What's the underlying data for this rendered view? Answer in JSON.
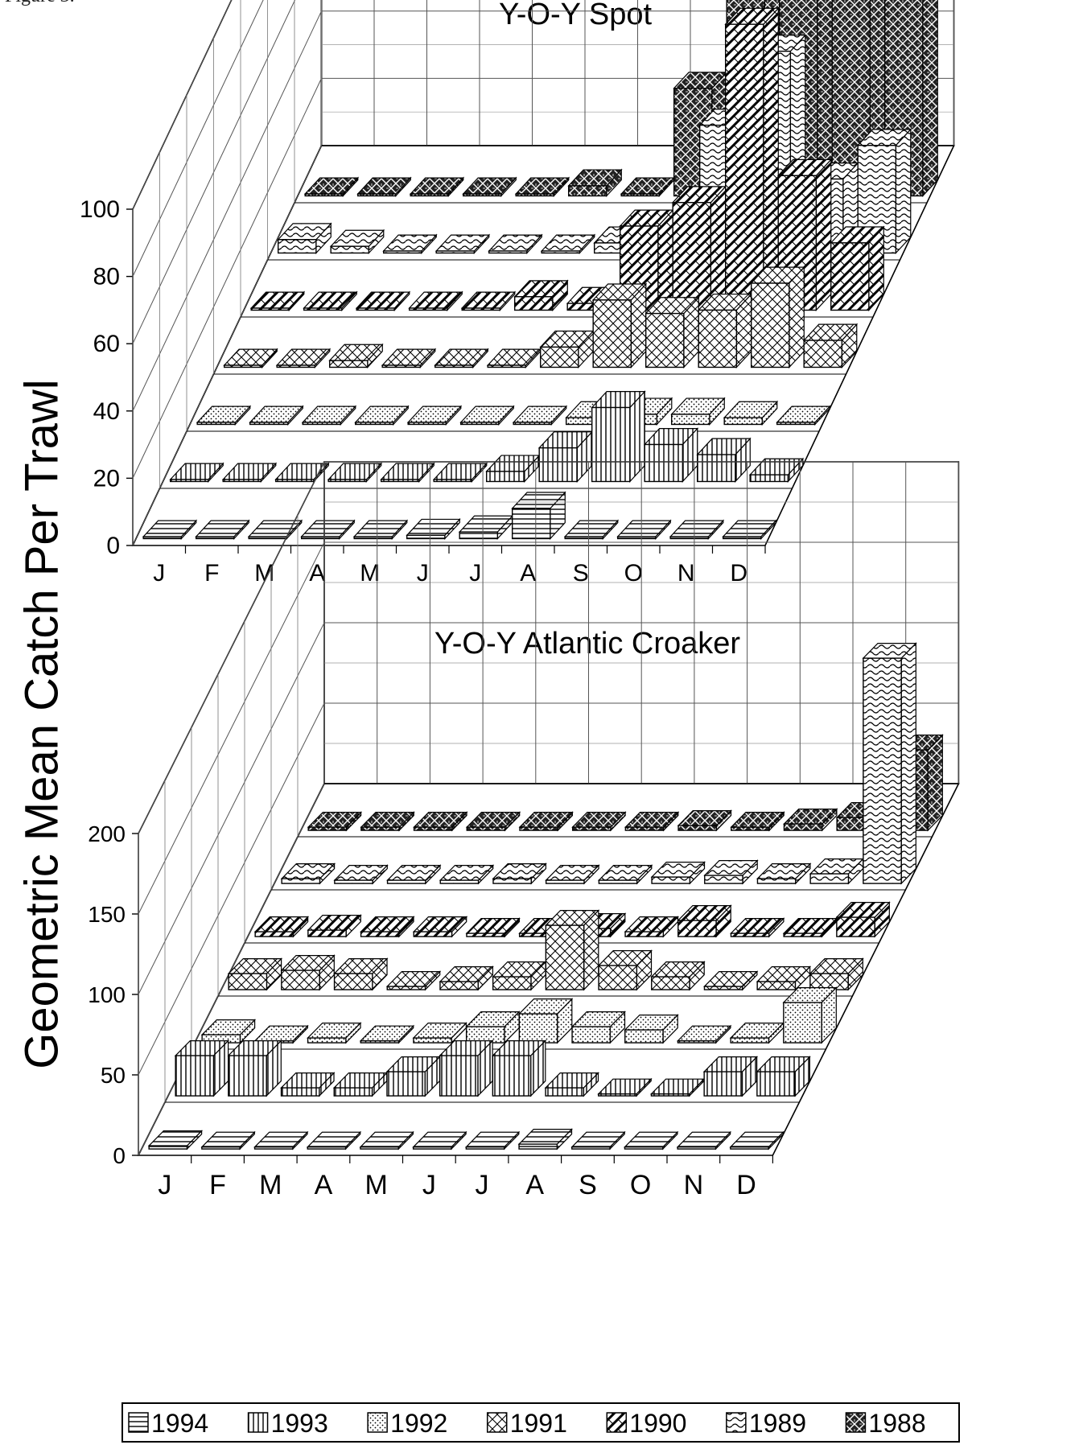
{
  "page": {
    "corner_text": "Figure 3.",
    "y_axis_title": "Geometric Mean Catch Per Trawl"
  },
  "legend": [
    {
      "year": "1994",
      "pattern": "hlines"
    },
    {
      "year": "1993",
      "pattern": "vlines"
    },
    {
      "year": "1992",
      "pattern": "dots"
    },
    {
      "year": "1991",
      "pattern": "xcross"
    },
    {
      "year": "1990",
      "pattern": "diagcheck"
    },
    {
      "year": "1989",
      "pattern": "waves"
    },
    {
      "year": "1988",
      "pattern": "darkweave"
    }
  ],
  "colors": {
    "ink": "#000000",
    "background": "#ffffff",
    "grid": "#555555"
  },
  "chart_data": [
    {
      "type": "bar3d",
      "title": "Y-O-Y Spot",
      "categories": [
        "J",
        "F",
        "M",
        "A",
        "M",
        "J",
        "J",
        "A",
        "S",
        "O",
        "N",
        "D"
      ],
      "ylim": [
        0,
        100
      ],
      "yticks": [
        0,
        20,
        40,
        60,
        80,
        100
      ],
      "series": [
        {
          "name": "1994",
          "values": [
            0,
            0,
            0,
            0,
            0,
            1,
            2,
            9,
            0,
            0,
            0,
            0
          ]
        },
        {
          "name": "1993",
          "values": [
            0,
            0,
            0,
            0,
            0,
            0,
            3,
            10,
            22,
            11,
            8,
            2
          ]
        },
        {
          "name": "1992",
          "values": [
            0,
            0,
            0,
            0,
            0,
            0,
            0,
            2,
            3,
            3,
            2,
            0
          ]
        },
        {
          "name": "1991",
          "values": [
            0,
            0,
            2,
            0,
            0,
            0,
            6,
            20,
            16,
            17,
            25,
            8
          ]
        },
        {
          "name": "1990",
          "values": [
            0,
            0,
            0,
            0,
            0,
            4,
            2,
            25,
            32,
            85,
            40,
            20
          ]
        },
        {
          "name": "1989",
          "values": [
            4,
            2,
            0,
            0,
            0,
            0,
            3,
            3,
            38,
            60,
            22,
            32
          ]
        },
        {
          "name": "1988",
          "values": [
            0,
            0,
            0,
            0,
            0,
            3,
            0,
            32,
            77,
            92,
            76,
            60
          ]
        }
      ]
    },
    {
      "type": "bar3d",
      "title": "Y-O-Y Atlantic Croaker",
      "categories": [
        "J",
        "F",
        "M",
        "A",
        "M",
        "J",
        "J",
        "A",
        "S",
        "O",
        "N",
        "D"
      ],
      "ylim": [
        0,
        200
      ],
      "yticks": [
        0,
        50,
        100,
        150,
        200
      ],
      "series": [
        {
          "name": "1994",
          "values": [
            2,
            0,
            0,
            0,
            0,
            0,
            1,
            3,
            0,
            0,
            0,
            0
          ]
        },
        {
          "name": "1993",
          "values": [
            25,
            25,
            5,
            5,
            15,
            25,
            25,
            5,
            0,
            0,
            15,
            15
          ]
        },
        {
          "name": "1992",
          "values": [
            5,
            0,
            3,
            0,
            3,
            10,
            18,
            10,
            8,
            0,
            3,
            25
          ]
        },
        {
          "name": "1991",
          "values": [
            10,
            12,
            10,
            2,
            5,
            8,
            40,
            15,
            8,
            2,
            5,
            10
          ]
        },
        {
          "name": "1990",
          "values": [
            3,
            4,
            3,
            3,
            2,
            2,
            5,
            3,
            10,
            2,
            2,
            12
          ]
        },
        {
          "name": "1989",
          "values": [
            3,
            2,
            2,
            2,
            3,
            2,
            2,
            4,
            5,
            3,
            6,
            140
          ]
        },
        {
          "name": "1988",
          "values": [
            2,
            2,
            2,
            2,
            2,
            2,
            2,
            3,
            2,
            4,
            8,
            50
          ]
        }
      ]
    }
  ]
}
